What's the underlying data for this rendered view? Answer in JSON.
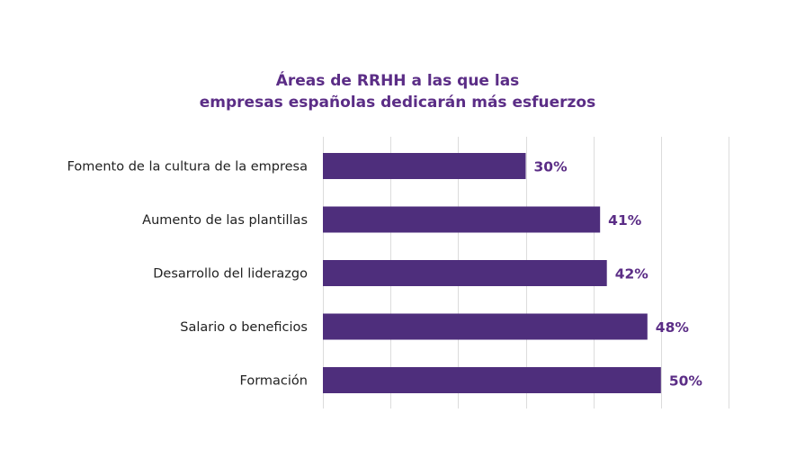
{
  "chart_data": {
    "type": "bar",
    "orientation": "horizontal",
    "title": [
      "Áreas de RRHH a las que las",
      "empresas españolas dedicarán más esfuerzos"
    ],
    "categories": [
      "Fomento de la cultura de la empresa",
      "Aumento de las plantillas",
      "Desarrollo del liderazgo",
      "Salario o beneficios",
      "Formación"
    ],
    "values": [
      30,
      41,
      42,
      48,
      50
    ],
    "value_labels": [
      "30%",
      "41%",
      "42%",
      "48%",
      "50%"
    ],
    "xlim": [
      0,
      60
    ],
    "grid_step": 10,
    "grid": true,
    "xlabel": "",
    "ylabel": "",
    "colors": {
      "bar": "#4e2e7c",
      "title": "#5b2d86",
      "value_label": "#5b2d86",
      "grid": "#dcdcdc"
    }
  }
}
